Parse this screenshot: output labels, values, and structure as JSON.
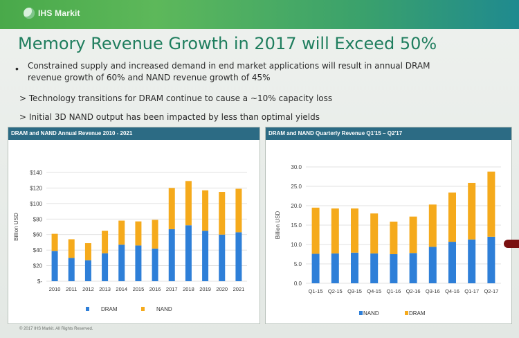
{
  "header": {
    "logo_text": "IHS Markit"
  },
  "title": "Memory Revenue Growth in 2017 will Exceed 50%",
  "bullet_marker": "•",
  "bullets": [
    "Constrained supply and increased demand in end market applications will result in annual DRAM revenue growth of 60% and NAND revenue growth of 45%",
    "> Technology transitions for DRAM continue to cause a ~10% capacity loss",
    "> Initial 3D NAND output has been impacted by less than optimal yields"
  ],
  "footer": "© 2017 IHS Markit. All Rights Reserved.",
  "colors": {
    "blue": "#2e7fd8",
    "orange": "#f5aa1c",
    "panel_header": "#2c6b84",
    "title": "#1f7e5e"
  },
  "chart_data": [
    {
      "type": "bar",
      "stacked": true,
      "title": "DRAM and NAND Annual Revenue 2010 - 2021",
      "ylabel": "Billion USD",
      "categories": [
        "2010",
        "2011",
        "2012",
        "2013",
        "2014",
        "2015",
        "2016",
        "2017",
        "2018",
        "2019",
        "2020",
        "2021"
      ],
      "ylim": [
        0,
        140
      ],
      "yticks": [
        0,
        20,
        40,
        60,
        80,
        100,
        120,
        140
      ],
      "ytick_labels": [
        "$-",
        "$20",
        "$40",
        "$60",
        "$80",
        "$100",
        "$120",
        "$140"
      ],
      "series": [
        {
          "name": "DRAM",
          "color": "#2e7fd8",
          "values": [
            39,
            30,
            27,
            36,
            47,
            46,
            42,
            67,
            72,
            65,
            60,
            63
          ]
        },
        {
          "name": "NAND",
          "color": "#f5aa1c",
          "values": [
            22,
            24,
            22,
            29,
            31,
            31,
            37,
            53,
            57,
            52,
            55,
            56
          ]
        }
      ],
      "legend": "bottom",
      "grid": true
    },
    {
      "type": "bar",
      "stacked": true,
      "title": "DRAM and NAND Quarterly Revenue Q1'15 – Q2'17",
      "ylabel": "Billion USD",
      "categories": [
        "Q1-15",
        "Q2-15",
        "Q3-15",
        "Q4-15",
        "Q1-16",
        "Q2-16",
        "Q3-16",
        "Q4-16",
        "Q1-17",
        "Q2-17"
      ],
      "ylim": [
        0,
        30
      ],
      "yticks": [
        0,
        5,
        10,
        15,
        20,
        25,
        30
      ],
      "ytick_labels": [
        "0.0",
        "5.0",
        "10.0",
        "15.0",
        "20.0",
        "25.0",
        "30.0"
      ],
      "series": [
        {
          "name": "NAND",
          "color": "#2e7fd8",
          "values": [
            7.6,
            7.7,
            7.9,
            7.7,
            7.5,
            7.8,
            9.4,
            10.7,
            11.3,
            12.0
          ]
        },
        {
          "name": "DRAM",
          "color": "#f5aa1c",
          "values": [
            11.9,
            11.6,
            11.4,
            10.3,
            8.4,
            9.4,
            10.9,
            12.7,
            14.6,
            16.8
          ]
        }
      ],
      "legend": "bottom",
      "grid": true
    }
  ]
}
